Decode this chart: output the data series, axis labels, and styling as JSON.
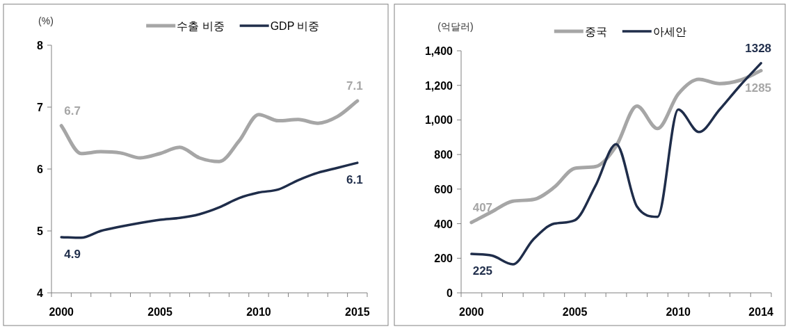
{
  "chart_data": [
    {
      "type": "line",
      "ylabel": "(%)",
      "legend": "top",
      "grid": false,
      "ylim": [
        4,
        8
      ],
      "yticks": [
        4,
        5,
        6,
        7,
        8
      ],
      "categories": [
        "2000",
        null,
        null,
        null,
        null,
        "2005",
        null,
        null,
        null,
        null,
        "2010",
        null,
        null,
        null,
        null,
        "2015"
      ],
      "series": [
        {
          "name": "수출 비중",
          "color": "#a6a6a6",
          "values": [
            6.7,
            6.25,
            6.28,
            6.26,
            6.18,
            6.25,
            6.35,
            6.18,
            6.12,
            6.45,
            6.88,
            6.78,
            6.8,
            6.74,
            6.85,
            7.1
          ],
          "value_labels": [
            "6.7",
            null,
            null,
            null,
            null,
            null,
            null,
            null,
            null,
            null,
            null,
            null,
            null,
            null,
            null,
            "7.1"
          ]
        },
        {
          "name": "GDP 비중",
          "color": "#1f2d4a",
          "values": [
            4.9,
            4.89,
            5.0,
            5.07,
            5.13,
            5.18,
            5.21,
            5.27,
            5.38,
            5.53,
            5.62,
            5.67,
            5.82,
            5.94,
            6.02,
            6.1
          ],
          "value_labels": [
            "4.9",
            null,
            null,
            null,
            null,
            null,
            null,
            null,
            null,
            null,
            null,
            null,
            null,
            null,
            null,
            "6.1"
          ]
        }
      ]
    },
    {
      "type": "line",
      "ylabel": "(억달러)",
      "legend": "top",
      "grid": false,
      "ylim": [
        0,
        1400
      ],
      "yticks": [
        0,
        200,
        400,
        600,
        800,
        {
          "value": 1000,
          "label": "1,000"
        },
        {
          "value": 1200,
          "label": "1,200"
        },
        {
          "value": 1400,
          "label": "1,400"
        }
      ],
      "categories": [
        "2000",
        null,
        null,
        null,
        null,
        "2005",
        null,
        null,
        null,
        null,
        "2010",
        null,
        null,
        null,
        "2014"
      ],
      "series": [
        {
          "name": "중국",
          "color": "#a6a6a6",
          "values": [
            407,
            470,
            530,
            540,
            610,
            720,
            730,
            850,
            1080,
            950,
            1150,
            1235,
            1210,
            1230,
            1285
          ],
          "value_labels": [
            "407",
            null,
            null,
            null,
            null,
            null,
            null,
            null,
            null,
            null,
            null,
            null,
            null,
            null,
            "1285"
          ]
        },
        {
          "name": "아세안",
          "color": "#1f2d4a",
          "values": [
            225,
            215,
            165,
            310,
            400,
            420,
            620,
            860,
            500,
            440,
            1060,
            930,
            1060,
            1200,
            1328
          ],
          "value_labels": [
            "225",
            null,
            null,
            null,
            null,
            null,
            null,
            null,
            null,
            null,
            null,
            null,
            null,
            null,
            "1328"
          ]
        }
      ]
    }
  ]
}
